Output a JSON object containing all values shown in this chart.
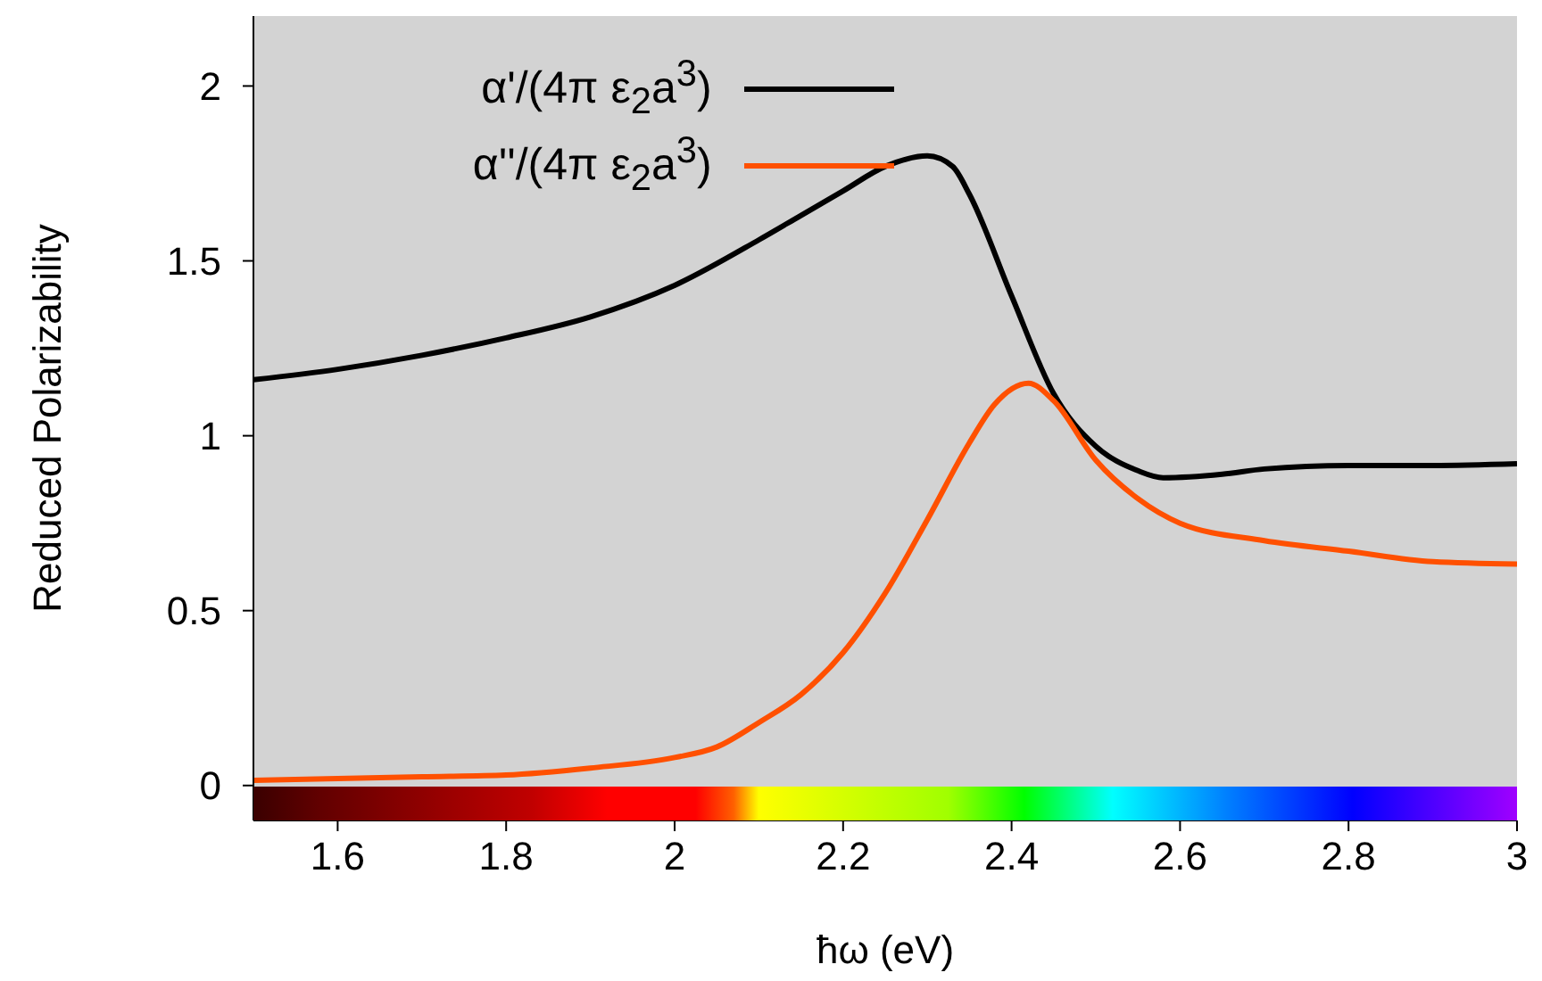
{
  "chart_data": {
    "type": "line",
    "xlabel": "ħω (eV)",
    "ylabel": "Reduced Polarizability",
    "xlim": [
      1.5,
      3
    ],
    "xticks": [
      {
        "value": 1.6,
        "label": "1.6"
      },
      {
        "value": 1.8,
        "label": "1.8"
      },
      2,
      {
        "value": 2.2,
        "label": "2.2"
      },
      {
        "value": 2.4,
        "label": "2.4"
      },
      {
        "value": 2.6,
        "label": "2.6"
      },
      {
        "value": 2.8,
        "label": "2.8"
      },
      3
    ],
    "ylim": [
      -0.1,
      2.2
    ],
    "yticks": [
      0,
      0.5,
      1,
      1.5,
      2
    ],
    "grid": false,
    "legend": "top",
    "marker": "none",
    "line_style": "solid",
    "series": [
      {
        "name": "α'/(4π ε$_{2}$a$^{3}$)",
        "color": "#000000",
        "x": [
          1.5,
          1.6,
          1.7,
          1.8,
          1.9,
          2.0,
          2.1,
          2.15,
          2.2,
          2.25,
          2.3,
          2.33,
          2.35,
          2.4,
          2.45,
          2.5,
          2.55,
          2.58,
          2.65,
          2.7,
          2.8,
          2.9,
          3.0
        ],
        "values": [
          1.16,
          1.19,
          1.23,
          1.28,
          1.34,
          1.43,
          1.56,
          1.63,
          1.7,
          1.77,
          1.8,
          1.77,
          1.69,
          1.4,
          1.12,
          0.97,
          0.9,
          0.88,
          0.89,
          0.905,
          0.915,
          0.915,
          0.92
        ]
      },
      {
        "name": "α''/(4π ε$_{2}$a$^{3}$)",
        "color": "#ff5000",
        "x": [
          1.5,
          1.6,
          1.7,
          1.8,
          1.9,
          2.0,
          2.05,
          2.1,
          2.15,
          2.2,
          2.25,
          2.3,
          2.35,
          2.38,
          2.42,
          2.45,
          2.5,
          2.55,
          2.6,
          2.7,
          2.8,
          2.9,
          3.0
        ],
        "values": [
          0.015,
          0.02,
          0.025,
          0.03,
          0.05,
          0.08,
          0.11,
          0.18,
          0.26,
          0.38,
          0.55,
          0.76,
          0.98,
          1.09,
          1.15,
          1.1,
          0.93,
          0.82,
          0.75,
          0.7,
          0.67,
          0.64,
          0.633
        ]
      }
    ]
  }
}
